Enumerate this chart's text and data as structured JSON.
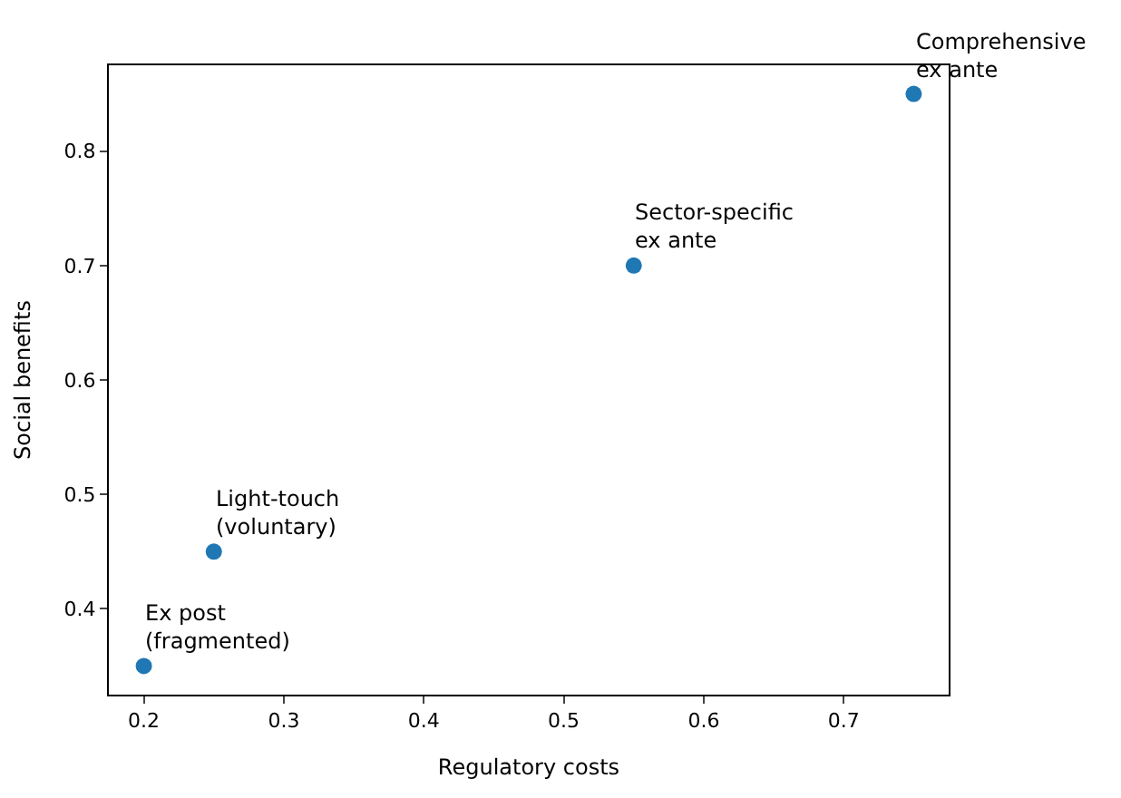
{
  "chart_data": {
    "type": "scatter",
    "xlabel": "Regulatory costs",
    "ylabel": "Social benefits",
    "x": [
      0.2,
      0.25,
      0.55,
      0.75
    ],
    "series": [
      {
        "color": "#1f77b4",
        "values": [
          0.35,
          0.45,
          0.7,
          0.85
        ]
      }
    ],
    "xlim": [
      0.175,
      0.775
    ],
    "ylim": [
      0.325,
      0.875
    ],
    "xticks": [
      0.2,
      0.3,
      0.4,
      0.5,
      0.6,
      0.7
    ],
    "yticks": [
      0.4,
      0.5,
      0.6,
      0.7,
      0.8
    ],
    "annotations": [
      {
        "text": "Ex post\n(fragmented)",
        "x": 0.2,
        "y": 0.35
      },
      {
        "text": "Light-touch\n(voluntary)",
        "x": 0.25,
        "y": 0.45
      },
      {
        "text": "Sector-specific\nex ante",
        "x": 0.55,
        "y": 0.7
      },
      {
        "text": "Comprehensive\nex ante",
        "x": 0.75,
        "y": 0.85
      }
    ]
  }
}
